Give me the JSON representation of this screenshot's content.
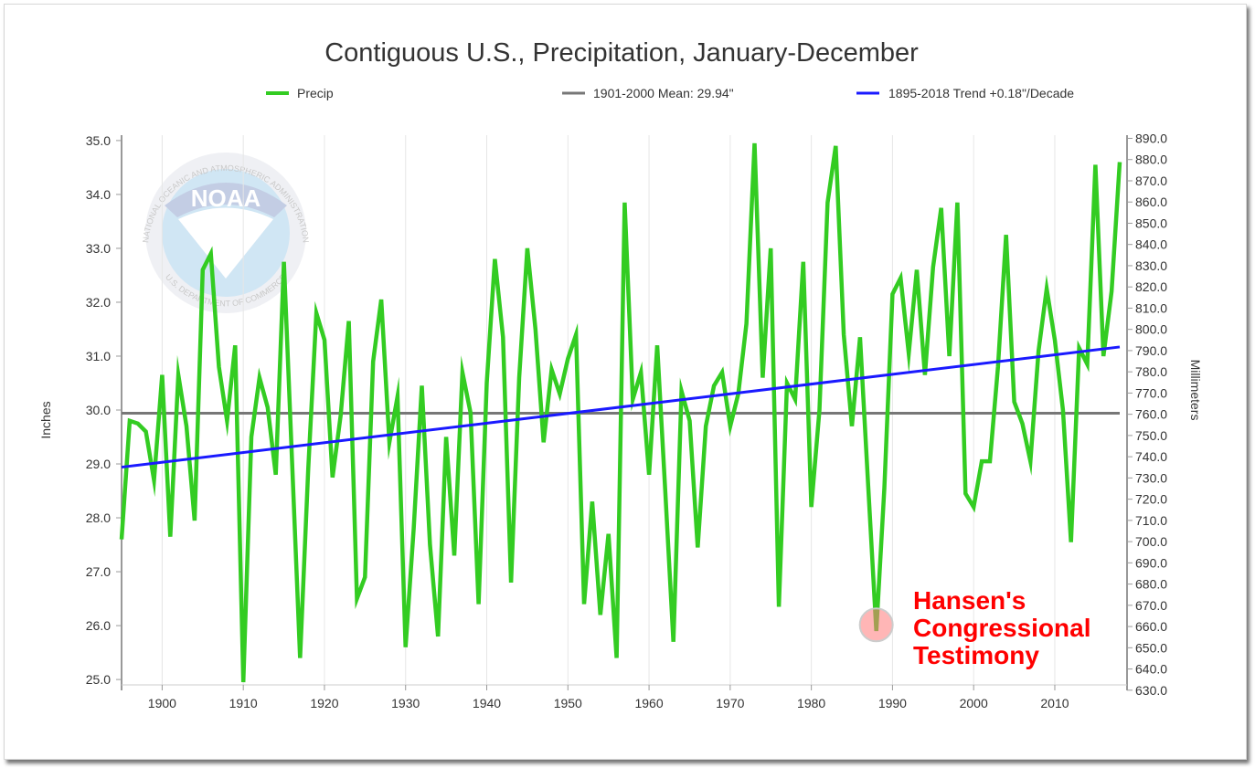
{
  "chart_data": {
    "type": "line",
    "title": "Contiguous U.S., Precipitation, January-December",
    "ylabel": "Inches",
    "y2label": "Millimeters",
    "xlim": [
      1895,
      2018
    ],
    "ylim": [
      24.9,
      35.1
    ],
    "y2lim": [
      632.5,
      891.5
    ],
    "xticks": [
      "1900",
      "1910",
      "1920",
      "1930",
      "1940",
      "1950",
      "1960",
      "1970",
      "1980",
      "1990",
      "2000",
      "2010"
    ],
    "yticks": [
      "25.0",
      "26.0",
      "27.0",
      "28.0",
      "29.0",
      "30.0",
      "31.0",
      "32.0",
      "33.0",
      "34.0",
      "35.0"
    ],
    "y2ticks": [
      "630.0",
      "640.0",
      "650.0",
      "660.0",
      "670.0",
      "680.0",
      "690.0",
      "700.0",
      "710.0",
      "720.0",
      "730.0",
      "740.0",
      "750.0",
      "760.0",
      "770.0",
      "780.0",
      "790.0",
      "800.0",
      "810.0",
      "820.0",
      "830.0",
      "840.0",
      "850.0",
      "860.0",
      "870.0",
      "880.0",
      "890.0"
    ],
    "legend": [
      "Precip",
      "1901-2000 Mean: 29.94\"",
      "1895-2018 Trend +0.18\"/Decade"
    ],
    "legend_placement": "top",
    "grid": "vertical",
    "series": [
      {
        "name": "Precip",
        "color": "#33cc22",
        "x": [
          1895,
          1896,
          1897,
          1898,
          1899,
          1900,
          1901,
          1902,
          1903,
          1904,
          1905,
          1906,
          1907,
          1908,
          1909,
          1910,
          1911,
          1912,
          1913,
          1914,
          1915,
          1916,
          1917,
          1918,
          1919,
          1920,
          1921,
          1922,
          1923,
          1924,
          1925,
          1926,
          1927,
          1928,
          1929,
          1930,
          1931,
          1932,
          1933,
          1934,
          1935,
          1936,
          1937,
          1938,
          1939,
          1940,
          1941,
          1942,
          1943,
          1944,
          1945,
          1946,
          1947,
          1948,
          1949,
          1950,
          1951,
          1952,
          1953,
          1954,
          1955,
          1956,
          1957,
          1958,
          1959,
          1960,
          1961,
          1962,
          1963,
          1964,
          1965,
          1966,
          1967,
          1968,
          1969,
          1970,
          1971,
          1972,
          1973,
          1974,
          1975,
          1976,
          1977,
          1978,
          1979,
          1980,
          1981,
          1982,
          1983,
          1984,
          1985,
          1986,
          1987,
          1988,
          1989,
          1990,
          1991,
          1992,
          1993,
          1994,
          1995,
          1996,
          1997,
          1998,
          1999,
          2000,
          2001,
          2002,
          2003,
          2004,
          2005,
          2006,
          2007,
          2008,
          2009,
          2010,
          2011,
          2012,
          2013,
          2014,
          2015,
          2016,
          2017,
          2018
        ],
        "values": [
          27.6,
          29.8,
          29.75,
          29.6,
          28.7,
          30.65,
          27.65,
          30.65,
          29.7,
          27.95,
          32.6,
          32.9,
          30.8,
          29.8,
          31.2,
          24.95,
          29.5,
          30.6,
          30.05,
          28.8,
          32.75,
          29.1,
          25.4,
          28.9,
          31.8,
          31.3,
          28.75,
          29.9,
          31.65,
          26.5,
          26.9,
          30.9,
          32.05,
          29.4,
          30.25,
          25.6,
          27.8,
          30.45,
          27.5,
          25.8,
          29.5,
          27.3,
          30.7,
          29.95,
          26.4,
          30.5,
          32.8,
          31.35,
          26.8,
          30.6,
          33.0,
          31.5,
          29.4,
          30.75,
          30.3,
          30.95,
          31.4,
          26.4,
          28.3,
          26.2,
          27.7,
          25.4,
          33.85,
          30.2,
          30.7,
          28.8,
          31.2,
          28.5,
          25.7,
          30.35,
          29.8,
          27.45,
          29.7,
          30.45,
          30.7,
          29.7,
          30.3,
          31.6,
          34.95,
          30.6,
          33.0,
          26.35,
          30.5,
          30.2,
          32.75,
          28.2,
          30.0,
          33.85,
          34.9,
          31.4,
          29.7,
          31.35,
          28.6,
          25.9,
          28.55,
          32.15,
          32.45,
          31.05,
          32.6,
          30.65,
          32.65,
          33.75,
          31.0,
          33.85,
          28.45,
          28.2,
          29.05,
          29.05,
          30.8,
          33.25,
          30.15,
          29.75,
          29.05,
          31.1,
          32.25,
          31.3,
          30.0,
          27.55,
          31.15,
          30.85,
          34.55,
          31.0,
          32.2,
          34.6
        ]
      },
      {
        "name": "1901-2000 Mean: 29.94\"",
        "color": "#777777",
        "value": 29.94
      },
      {
        "name": "1895-2018 Trend +0.18\"/Decade",
        "color": "#1a1aff",
        "x": [
          1895,
          2018
        ],
        "values": [
          28.94,
          31.17
        ]
      }
    ],
    "annotation": {
      "year": 1988,
      "value": 25.98,
      "lines": [
        "Hansen's",
        "Congressional",
        "Testimony"
      ]
    },
    "watermark": {
      "label": "NOAA",
      "ring_text": "NATIONAL OCEANIC AND ATMOSPHERIC ADMINISTRATION",
      "ring_text_bottom": "U.S. DEPARTMENT OF COMMERCE"
    }
  }
}
